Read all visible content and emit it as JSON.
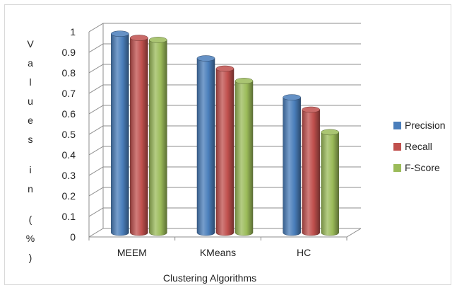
{
  "chart_data": {
    "type": "bar",
    "title": "",
    "xlabel": "Clustering  Algorithms",
    "ylabel": "V a l u e s   i n   ( % )",
    "ylim": [
      0,
      1
    ],
    "yticks": [
      "0",
      "0.1",
      "0.2",
      "0.3",
      "0.4",
      "0.5",
      "0.6",
      "0.7",
      "0.8",
      "0.9",
      "1"
    ],
    "categories": [
      "MEEM",
      "KMeans",
      "HC"
    ],
    "series": [
      {
        "name": "Precision",
        "values": [
          0.97,
          0.85,
          0.66
        ],
        "color": "#4a7ebb"
      },
      {
        "name": "Recall",
        "values": [
          0.95,
          0.8,
          0.6
        ],
        "color": "#c0504d"
      },
      {
        "name": "F-Score",
        "values": [
          0.94,
          0.74,
          0.49
        ],
        "color": "#9bbb59"
      }
    ],
    "grid": true,
    "legend_position": "right",
    "style": "3d-cylinder"
  }
}
